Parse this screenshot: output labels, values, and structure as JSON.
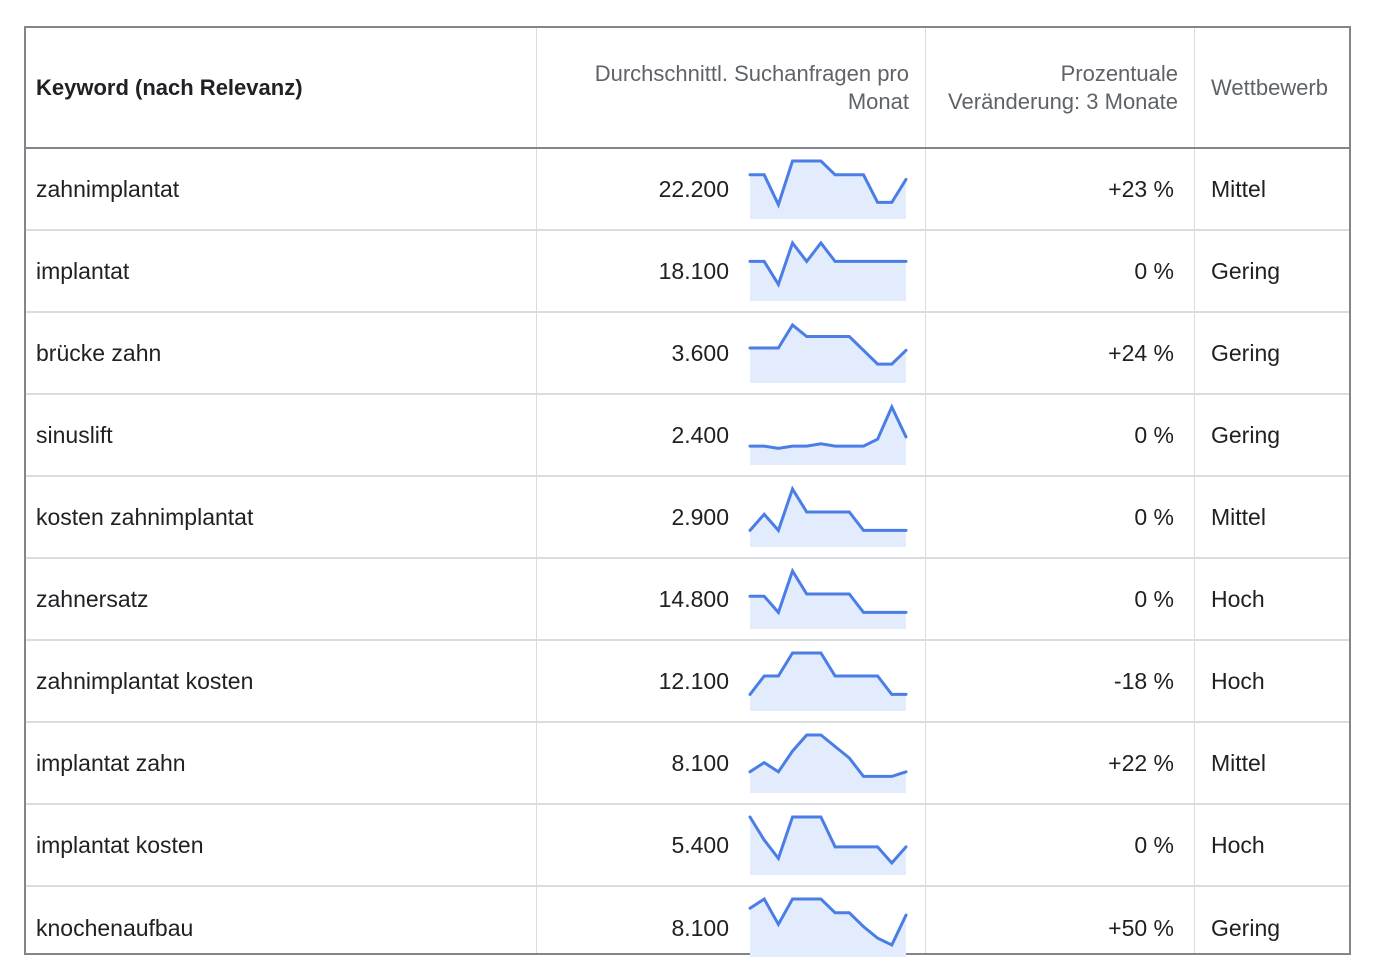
{
  "table": {
    "headers": {
      "keyword": "Keyword (nach Relevanz)",
      "volume": "Durchschnittl. Suchanfragen pro Monat",
      "change": "Prozentuale Veränderung: 3 Monate",
      "competition": "Wettbewerb"
    },
    "accent_color": "#4a7ee6",
    "rows": [
      {
        "keyword": "zahnimplantat",
        "volume": "22.200",
        "change": "+23 %",
        "competition": "Mittel",
        "trend": [
          0.7,
          0.7,
          0.05,
          1.0,
          1.0,
          1.0,
          0.7,
          0.7,
          0.7,
          0.1,
          0.1,
          0.6
        ]
      },
      {
        "keyword": "implantat",
        "volume": "18.100",
        "change": "0 %",
        "competition": "Gering",
        "trend": [
          0.6,
          0.6,
          0.1,
          1.0,
          0.6,
          1.0,
          0.6,
          0.6,
          0.6,
          0.6,
          0.6,
          0.6
        ]
      },
      {
        "keyword": "brücke zahn",
        "volume": "3.600",
        "change": "+24 %",
        "competition": "Gering",
        "trend": [
          0.5,
          0.5,
          0.5,
          1.0,
          0.75,
          0.75,
          0.75,
          0.75,
          0.45,
          0.15,
          0.15,
          0.45
        ]
      },
      {
        "keyword": "sinuslift",
        "volume": "2.400",
        "change": "0 %",
        "competition": "Gering",
        "trend": [
          0.15,
          0.15,
          0.1,
          0.15,
          0.15,
          0.2,
          0.15,
          0.15,
          0.15,
          0.3,
          1.0,
          0.35
        ]
      },
      {
        "keyword": "kosten zahnimplantat",
        "volume": "2.900",
        "change": "0 %",
        "competition": "Mittel",
        "trend": [
          0.1,
          0.45,
          0.1,
          1.0,
          0.5,
          0.5,
          0.5,
          0.5,
          0.1,
          0.1,
          0.1,
          0.1
        ]
      },
      {
        "keyword": "zahnersatz",
        "volume": "14.800",
        "change": "0 %",
        "competition": "Hoch",
        "trend": [
          0.45,
          0.45,
          0.1,
          1.0,
          0.5,
          0.5,
          0.5,
          0.5,
          0.1,
          0.1,
          0.1,
          0.1
        ]
      },
      {
        "keyword": "zahnimplantat kosten",
        "volume": "12.100",
        "change": "-18 %",
        "competition": "Hoch",
        "trend": [
          0.1,
          0.5,
          0.5,
          1.0,
          1.0,
          1.0,
          0.5,
          0.5,
          0.5,
          0.5,
          0.1,
          0.1
        ]
      },
      {
        "keyword": "implantat zahn",
        "volume": "8.100",
        "change": "+22 %",
        "competition": "Mittel",
        "trend": [
          0.2,
          0.4,
          0.2,
          0.65,
          1.0,
          1.0,
          0.75,
          0.5,
          0.1,
          0.1,
          0.1,
          0.2
        ]
      },
      {
        "keyword": "implantat kosten",
        "volume": "5.400",
        "change": "0 %",
        "competition": "Hoch",
        "trend": [
          1.0,
          0.5,
          0.1,
          1.0,
          1.0,
          1.0,
          0.35,
          0.35,
          0.35,
          0.35,
          0.0,
          0.35
        ]
      },
      {
        "keyword": "knochenaufbau",
        "volume": "8.100",
        "change": "+50 %",
        "competition": "Gering",
        "trend": [
          0.8,
          1.0,
          0.45,
          1.0,
          1.0,
          1.0,
          0.7,
          0.7,
          0.4,
          0.15,
          0.0,
          0.65
        ]
      }
    ]
  }
}
